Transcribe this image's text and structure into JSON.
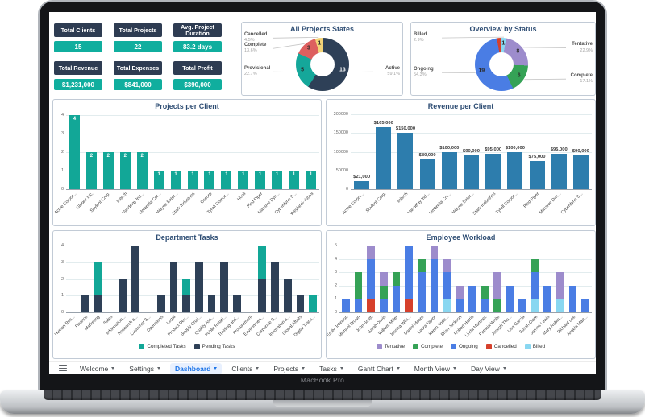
{
  "frame": {
    "device_label": "MacBook Pro"
  },
  "colors": {
    "navy": "#2e4057",
    "teal": "#12a797",
    "kpi_header": "#2e3c52",
    "kpi_value": "#10ae9e",
    "revenue_bar": "#2d7dad",
    "ongoing_blue": "#4a7de4",
    "complete_green": "#35a256",
    "tentative_purple": "#9d8ccc",
    "cancelled_red": "#d6402c",
    "billed_cyan": "#89d7f1",
    "menu_active": "#1a73e8",
    "panel_border": "#c2cbd6",
    "title": "#2f4e74"
  },
  "kpis": [
    {
      "label": "Total Clients",
      "value": "15"
    },
    {
      "label": "Total Projects",
      "value": "22"
    },
    {
      "label": "Avg. Project Duration",
      "value": "83.2 days"
    },
    {
      "label": "Total Revenue",
      "value": "$1,231,000"
    },
    {
      "label": "Total Expenses",
      "value": "$841,000"
    },
    {
      "label": "Total Profit",
      "value": "$390,000"
    }
  ],
  "chart_data": [
    {
      "id": "projects_states",
      "type": "donut",
      "title": "All Projects States",
      "slices": [
        {
          "label": "Active",
          "value": 13,
          "pct": "59.1%",
          "color": "#2e4057",
          "callout": "right"
        },
        {
          "label": "Provisional",
          "value": 5,
          "pct": "22.7%",
          "color": "#15a79a",
          "callout": "left"
        },
        {
          "label": "Complete",
          "value": 3,
          "pct": "13.6%",
          "color": "#dd5f5f",
          "callout": "left"
        },
        {
          "label": "Cancelled",
          "value": 1,
          "pct": "4.5%",
          "color": "#f2d377",
          "callout": "left"
        }
      ]
    },
    {
      "id": "overview_status",
      "type": "donut",
      "title": "Overview by Status",
      "slices": [
        {
          "label": "Billed",
          "value": 1,
          "pct": "2.9%",
          "color": "#89d7f1",
          "callout": "left"
        },
        {
          "label": "Tentative",
          "value": 8,
          "pct": "22.9%",
          "color": "#9d8ccc",
          "callout": "right"
        },
        {
          "label": "Complete",
          "value": 6,
          "pct": "17.1%",
          "color": "#35a256",
          "callout": "right"
        },
        {
          "label": "Ongoing",
          "value": 19,
          "pct": "54.3%",
          "color": "#4a7de4",
          "callout": "left"
        },
        {
          "label": "Cancelled",
          "value": 1,
          "pct": "2.9%",
          "color": "#d6402c",
          "callout": null,
          "show_value": false
        }
      ]
    },
    {
      "id": "projects_per_client",
      "type": "bar",
      "title": "Projects per Client",
      "color": "#12a797",
      "ymax": 4,
      "yticks": [
        0,
        1,
        2,
        3,
        4
      ],
      "value_label": "inside",
      "categories": [
        "Acme Corpor...",
        "Globex Inc.",
        "Soylent Corp.",
        "Initech",
        "Vandelay Ind...",
        "Umbrella Cor...",
        "Wayne Enter...",
        "Stark Industries",
        "Oscorp",
        "Tyrell Corpor...",
        "Hooli",
        "Pied Piper",
        "Massive Dyn...",
        "Cyberdyne S...",
        "Weyland-Yutani"
      ],
      "values": [
        4,
        2,
        2,
        2,
        2,
        1,
        1,
        1,
        1,
        1,
        1,
        1,
        1,
        1,
        1
      ]
    },
    {
      "id": "revenue_per_client",
      "type": "bar",
      "title": "Revenue per Client",
      "color": "#2d7dad",
      "ymax": 200000,
      "yticks": [
        0,
        50000,
        100000,
        150000,
        200000
      ],
      "value_label": "above",
      "categories": [
        "Acme Corpor...",
        "Soylent Corp.",
        "Initech",
        "Vandelay Ind...",
        "Umbrella Cor...",
        "Wayne Enter...",
        "Stark Industries",
        "Tyrell Corpor...",
        "Pied Piper",
        "Massive Dyn...",
        "Cyberdyne S..."
      ],
      "values": [
        21000,
        165000,
        150000,
        80000,
        100000,
        90000,
        95000,
        100000,
        75000,
        95000,
        90000
      ],
      "value_labels": [
        "$21,000",
        "$165,000",
        "$150,000",
        "$80,000",
        "$100,000",
        "$90,000",
        "$95,000",
        "$100,000",
        "$75,000",
        "$95,000",
        "$90,000"
      ]
    },
    {
      "id": "department_tasks",
      "type": "stacked",
      "title": "Department Tasks",
      "ymax": 4,
      "yticks": [
        0,
        1,
        2,
        3,
        4
      ],
      "legend": true,
      "categories": [
        "Human Res...",
        "Finance",
        "Marketing",
        "Sales",
        "Information...",
        "Research a...",
        "Customer S...",
        "Operations",
        "Legal",
        "Product Dev...",
        "Supply Chai...",
        "Quality Ass...",
        "Public Relati...",
        "Training and...",
        "Procurement",
        "Environmen...",
        "Corporate S...",
        "Innovation a...",
        "Global Affairs",
        "Digital Trans..."
      ],
      "series": [
        {
          "name": "Completed Tasks",
          "color": "#12a797",
          "values": [
            0,
            0,
            2,
            0,
            0,
            0,
            0,
            0,
            0,
            1,
            0,
            0,
            0,
            0,
            0,
            2,
            0,
            0,
            0,
            1
          ]
        },
        {
          "name": "Pending Tasks",
          "color": "#2e4057",
          "values": [
            0,
            1,
            1,
            0,
            2,
            4,
            0,
            1,
            3,
            1,
            3,
            1,
            3,
            1,
            0,
            2,
            3,
            2,
            1,
            0
          ]
        }
      ]
    },
    {
      "id": "employee_workload",
      "type": "stacked",
      "title": "Employee Workload",
      "ymax": 5,
      "yticks": [
        0,
        1,
        2,
        3,
        4,
        5
      ],
      "legend": true,
      "categories": [
        "Emily Johnson",
        "Michael Brown",
        "John Smith",
        "Sarah Davis",
        "William Miller",
        "Jessica Wils...",
        "Daniel Moore",
        "Laura Taylor",
        "Karen Ande...",
        "Brian Jackson",
        "Robert Harris",
        "Linda Martinez",
        "Patricia White",
        "Joseph Tho...",
        "Lisa Garcia",
        "Susan Clark",
        "James Lewis",
        "Mary Robin...",
        "Richard Lee",
        "Angela Mart..."
      ],
      "series": [
        {
          "name": "Tentative",
          "color": "#9d8ccc",
          "values": [
            0,
            0,
            1,
            1,
            0,
            0,
            0,
            1,
            1,
            1,
            0,
            0,
            2,
            0,
            0,
            0,
            0,
            2,
            0,
            0
          ]
        },
        {
          "name": "Complete",
          "color": "#35a256",
          "values": [
            0,
            2,
            0,
            1,
            1,
            0,
            1,
            0,
            0,
            0,
            0,
            1,
            1,
            0,
            0,
            1,
            0,
            0,
            0,
            0
          ]
        },
        {
          "name": "Ongoing",
          "color": "#4a7de4",
          "values": [
            1,
            1,
            3,
            1,
            2,
            4,
            3,
            4,
            2,
            1,
            2,
            1,
            0,
            2,
            1,
            2,
            2,
            0,
            2,
            1
          ]
        },
        {
          "name": "Cancelled",
          "color": "#d6402c",
          "values": [
            0,
            0,
            1,
            0,
            0,
            1,
            0,
            0,
            0,
            0,
            0,
            0,
            0,
            0,
            0,
            0,
            0,
            0,
            0,
            0
          ]
        },
        {
          "name": "Billed",
          "color": "#89d7f1",
          "values": [
            0,
            0,
            0,
            0,
            0,
            0,
            0,
            0,
            1,
            0,
            0,
            0,
            0,
            0,
            0,
            1,
            0,
            1,
            0,
            0
          ]
        }
      ]
    }
  ],
  "menu": {
    "items": [
      {
        "label": "Welcome",
        "active": false
      },
      {
        "label": "Settings",
        "active": false
      },
      {
        "label": "Dashboard",
        "active": true
      },
      {
        "label": "Clients",
        "active": false
      },
      {
        "label": "Projects",
        "active": false
      },
      {
        "label": "Tasks",
        "active": false
      },
      {
        "label": "Gantt Chart",
        "active": false
      },
      {
        "label": "Month View",
        "active": false
      },
      {
        "label": "Day View",
        "active": false
      }
    ]
  }
}
